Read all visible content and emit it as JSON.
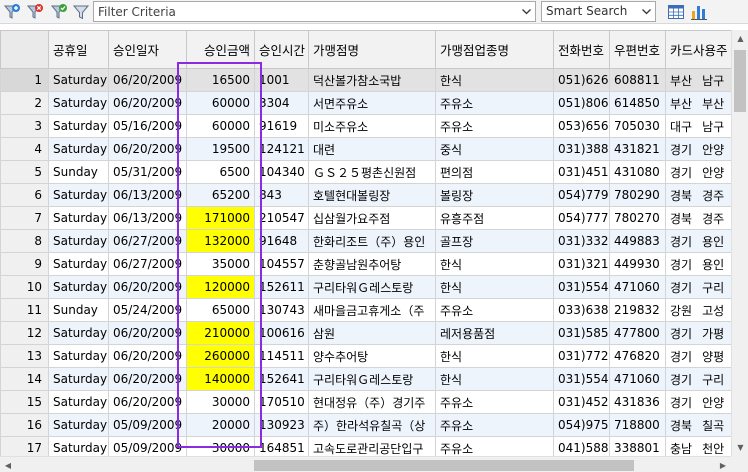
{
  "toolbar": {
    "filter_placeholder": "Filter Criteria",
    "filter_value": "",
    "search_mode": "Smart Search"
  },
  "columns": [
    "공휴일",
    "승인일자",
    "승인금액",
    "승인시간",
    "가맹점명",
    "가맹점업종명",
    "전화번호",
    "우편번호",
    "카드사용주"
  ],
  "rows": [
    {
      "n": "1",
      "day": "Saturday",
      "date": "06/20/2009",
      "amount": "16500",
      "time": "1001",
      "store": "덕산볼가참소국밥",
      "type": "한식",
      "phone": "051)626-0",
      "zip": "608811",
      "region": "부산",
      "area": "남구"
    },
    {
      "n": "2",
      "day": "Saturday",
      "date": "06/20/2009",
      "amount": "60000",
      "time": "3304",
      "store": "서면주유소",
      "type": "주유소",
      "phone": "051)806-1",
      "zip": "614850",
      "region": "부산",
      "area": "부산"
    },
    {
      "n": "3",
      "day": "Saturday",
      "date": "05/16/2009",
      "amount": "60000",
      "time": "91619",
      "store": "미소주유소",
      "type": "주유소",
      "phone": "053)656-6",
      "zip": "705030",
      "region": "대구",
      "area": "남구"
    },
    {
      "n": "4",
      "day": "Saturday",
      "date": "06/20/2009",
      "amount": "19500",
      "time": "124121",
      "store": "대련",
      "type": "중식",
      "phone": "031)388-6",
      "zip": "431821",
      "region": "경기",
      "area": "안양"
    },
    {
      "n": "5",
      "day": "Sunday",
      "date": "05/31/2009",
      "amount": "6500",
      "time": "104340",
      "store": "ＧＳ２５평촌신원점",
      "type": "편의점",
      "phone": "031)451-3",
      "zip": "431080",
      "region": "경기",
      "area": "안양"
    },
    {
      "n": "6",
      "day": "Saturday",
      "date": "06/13/2009",
      "amount": "65200",
      "time": "843",
      "store": "호텔현대볼링장",
      "type": "볼링장",
      "phone": "054)779-7",
      "zip": "780290",
      "region": "경북",
      "area": "경주"
    },
    {
      "n": "7",
      "day": "Saturday",
      "date": "06/13/2009",
      "amount": "171000",
      "time": "210547",
      "store": "십삼월가요주점",
      "type": "유흥주점",
      "phone": "054)777-5",
      "zip": "780270",
      "region": "경북",
      "area": "경주"
    },
    {
      "n": "8",
      "day": "Saturday",
      "date": "06/27/2009",
      "amount": "132000",
      "time": "91648",
      "store": "한화리조트（주）용인",
      "type": "골프장",
      "phone": "031)332-1",
      "zip": "449883",
      "region": "경기",
      "area": "용인"
    },
    {
      "n": "9",
      "day": "Saturday",
      "date": "06/27/2009",
      "amount": "35000",
      "time": "104557",
      "store": "춘향골남원추어탕",
      "type": "한식",
      "phone": "031)321-3",
      "zip": "449930",
      "region": "경기",
      "area": "용인"
    },
    {
      "n": "10",
      "day": "Saturday",
      "date": "06/20/2009",
      "amount": "120000",
      "time": "152611",
      "store": "구리타워Ｇ레스토랑",
      "type": "한식",
      "phone": "031)554-0",
      "zip": "471060",
      "region": "경기",
      "area": "구리"
    },
    {
      "n": "11",
      "day": "Sunday",
      "date": "05/24/2009",
      "amount": "65000",
      "time": "130743",
      "store": "새마을금고휴게소（주",
      "type": "주유소",
      "phone": "033)638-2",
      "zip": "219832",
      "region": "강원",
      "area": "고성"
    },
    {
      "n": "12",
      "day": "Saturday",
      "date": "06/20/2009",
      "amount": "210000",
      "time": "100616",
      "store": "삼원",
      "type": "레저용품점",
      "phone": "031)585-7",
      "zip": "477800",
      "region": "경기",
      "area": "가평"
    },
    {
      "n": "13",
      "day": "Saturday",
      "date": "06/20/2009",
      "amount": "260000",
      "time": "114511",
      "store": "양수추어탕",
      "type": "한식",
      "phone": "031)772-6",
      "zip": "476820",
      "region": "경기",
      "area": "양평"
    },
    {
      "n": "14",
      "day": "Saturday",
      "date": "06/20/2009",
      "amount": "140000",
      "time": "152641",
      "store": "구리타워Ｇ레스토랑",
      "type": "한식",
      "phone": "031)554-0",
      "zip": "471060",
      "region": "경기",
      "area": "구리"
    },
    {
      "n": "15",
      "day": "Saturday",
      "date": "06/20/2009",
      "amount": "30000",
      "time": "170510",
      "store": "현대정유（주）경기주",
      "type": "주유소",
      "phone": "031)452-8",
      "zip": "431836",
      "region": "경기",
      "area": "안양"
    },
    {
      "n": "16",
      "day": "Saturday",
      "date": "05/09/2009",
      "amount": "20000",
      "time": "130923",
      "store": "주）한라석유칠곡（상",
      "type": "주유소",
      "phone": "054)975-2",
      "zip": "718800",
      "region": "경북",
      "area": "칠곡"
    },
    {
      "n": "17",
      "day": "Saturday",
      "date": "05/09/2009",
      "amount": "30000",
      "time": "164851",
      "store": "고속도로관리공단입구",
      "type": "주유소",
      "phone": "041)588-2",
      "zip": "338801",
      "region": "충남",
      "area": "천안"
    }
  ],
  "highlight_amount_threshold": 100000,
  "highlight_color": "#ffff00",
  "annotation_box_color": "#8a2be2"
}
